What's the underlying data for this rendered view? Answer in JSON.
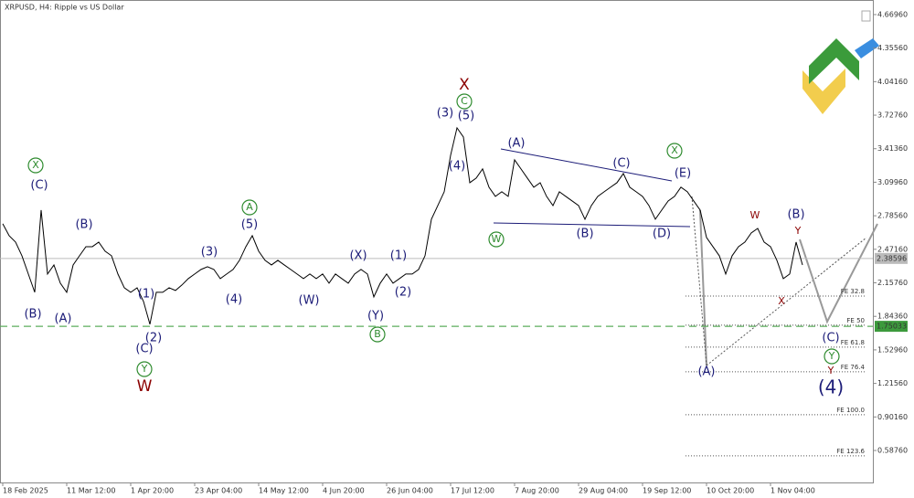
{
  "chart_data": {
    "type": "line",
    "title": "XRPUSD, H4:  Ripple vs US Dollar",
    "categories": [
      "18 Feb 2025",
      null,
      null,
      null,
      null,
      null,
      null,
      null,
      null,
      null,
      "11 Mar 12:00",
      null,
      null,
      null,
      null,
      null,
      null,
      null,
      null,
      null,
      "1 Apr 20:00",
      null,
      null,
      null,
      null,
      null,
      null,
      null,
      null,
      null,
      "23 Apr 04:00",
      null,
      null,
      null,
      null,
      null,
      null,
      null,
      null,
      null,
      "14 May 12:00",
      null,
      null,
      null,
      null,
      null,
      null,
      null,
      null,
      null,
      "4 Jun 20:00",
      null,
      null,
      null,
      null,
      null,
      null,
      null,
      null,
      null,
      "26 Jun 04:00",
      null,
      null,
      null,
      null,
      null,
      null,
      null,
      null,
      null,
      "17 Jul 12:00",
      null,
      null,
      null,
      null,
      null,
      null,
      null,
      null,
      null,
      "7 Aug 20:00",
      null,
      null,
      null,
      null,
      null,
      null,
      null,
      null,
      null,
      "29 Aug 04:00",
      null,
      null,
      null,
      null,
      null,
      null,
      null,
      null,
      null,
      "19 Sep 12:00",
      null,
      null,
      null,
      null,
      null,
      null,
      null,
      null,
      null,
      "10 Oct 20:00",
      null,
      null,
      null,
      null,
      null,
      null,
      null,
      null,
      null,
      "1 Nov 04:00",
      null,
      null,
      null,
      null,
      null
    ],
    "values": [
      2.711,
      2.599,
      2.539,
      2.411,
      2.24,
      2.069,
      2.839,
      2.24,
      2.325,
      2.154,
      2.069,
      2.325,
      2.411,
      2.496,
      2.496,
      2.539,
      2.454,
      2.411,
      2.24,
      2.111,
      2.069,
      2.111,
      1.983,
      1.769,
      2.069,
      2.069,
      2.111,
      2.086,
      2.137,
      2.197,
      2.24,
      2.283,
      2.308,
      2.283,
      2.197,
      2.24,
      2.283,
      2.368,
      2.496,
      2.599,
      2.454,
      2.368,
      2.325,
      2.368,
      2.325,
      2.283,
      2.24,
      2.197,
      2.24,
      2.197,
      2.24,
      2.154,
      2.24,
      2.197,
      2.154,
      2.24,
      2.283,
      2.24,
      2.026,
      2.154,
      2.24,
      2.154,
      2.197,
      2.24,
      2.24,
      2.283,
      2.411,
      2.753,
      2.881,
      3.01,
      3.352,
      3.609,
      3.523,
      3.095,
      3.138,
      3.224,
      3.053,
      2.967,
      3.01,
      2.967,
      3.309,
      3.224,
      3.138,
      3.053,
      3.095,
      2.967,
      2.881,
      3.01,
      2.967,
      2.924,
      2.881,
      2.753,
      2.881,
      2.967,
      3.01,
      3.053,
      3.095,
      3.181,
      3.053,
      3.01,
      2.967,
      2.881,
      2.753,
      2.839,
      2.924,
      2.967,
      3.053,
      3.01,
      2.924,
      2.839,
      2.582,
      2.496,
      2.411,
      2.24,
      2.411,
      2.496,
      2.539,
      2.625,
      2.667,
      2.539,
      2.496,
      2.368,
      2.197,
      2.24,
      2.539,
      2.325
    ],
    "color": "#000000",
    "ylim": [
      0.288,
      4.789
    ],
    "yticks": [
      {
        "value": 4.6696,
        "label": "4.66960"
      },
      {
        "value": 4.3556,
        "label": "4.35560"
      },
      {
        "value": 4.0416,
        "label": "4.04160"
      },
      {
        "value": 3.7276,
        "label": "3.72760"
      },
      {
        "value": 3.4136,
        "label": "3.41360"
      },
      {
        "value": 3.0996,
        "label": "3.09960"
      },
      {
        "value": 2.7856,
        "label": "2.78560"
      },
      {
        "value": 2.4716,
        "label": "2.47160"
      },
      {
        "value": 2.1576,
        "label": "2.15760"
      },
      {
        "value": 1.8436,
        "label": "1.84360"
      },
      {
        "value": 1.5296,
        "label": "1.52960"
      },
      {
        "value": 1.2156,
        "label": "1.21560"
      },
      {
        "value": 0.9016,
        "label": "0.90160"
      },
      {
        "value": 0.5876,
        "label": "0.58760"
      }
    ],
    "price_line": 2.38596,
    "level_line": 1.75033,
    "fib_levels": [
      {
        "label": "FE 32.8",
        "value": 2.034
      },
      {
        "label": "FE 50",
        "value": 1.761
      },
      {
        "label": "FE 61.8",
        "value": 1.555
      },
      {
        "label": "FE 76.4",
        "value": 1.324
      },
      {
        "label": "FE 100.0",
        "value": 0.922
      },
      {
        "label": "FE 123.6",
        "value": 0.537
      }
    ],
    "annotations": [
      {
        "text": "(B)",
        "color": "#1c1c78"
      },
      {
        "text": "(A)",
        "color": "#1c1c78"
      },
      {
        "text": "X",
        "color": "#2e8b2e"
      },
      {
        "text": "(C)",
        "color": "#1c1c78"
      },
      {
        "text": "(B)",
        "color": "#1c1c78"
      },
      {
        "text": "(1)",
        "color": "#1c1c78"
      },
      {
        "text": "(C)",
        "color": "#1c1c78"
      },
      {
        "text": "(2)",
        "color": "#1c1c78"
      },
      {
        "text": "Y",
        "color": "#2e8b2e"
      },
      {
        "text": "W",
        "color": "#8b0000"
      },
      {
        "text": "(3)",
        "color": "#1c1c78"
      },
      {
        "text": "(4)",
        "color": "#1c1c78"
      },
      {
        "text": "A",
        "color": "#2e8b2e"
      },
      {
        "text": "(5)",
        "color": "#1c1c78"
      },
      {
        "text": "(W)",
        "color": "#1c1c78"
      },
      {
        "text": "(X)",
        "color": "#1c1c78"
      },
      {
        "text": "(Y)",
        "color": "#1c1c78"
      },
      {
        "text": "B",
        "color": "#2e8b2e"
      },
      {
        "text": "(1)",
        "color": "#1c1c78"
      },
      {
        "text": "(2)",
        "color": "#1c1c78"
      },
      {
        "text": "(3)",
        "color": "#1c1c78"
      },
      {
        "text": "(4)",
        "color": "#1c1c78"
      },
      {
        "text": "(5)",
        "color": "#1c1c78"
      },
      {
        "text": "C",
        "color": "#2e8b2e"
      },
      {
        "text": "X",
        "color": "#8b0000"
      },
      {
        "text": "(A)",
        "color": "#1c1c78"
      },
      {
        "text": "W",
        "color": "#2e8b2e"
      },
      {
        "text": "(B)",
        "color": "#1c1c78"
      },
      {
        "text": "(C)",
        "color": "#1c1c78"
      },
      {
        "text": "(D)",
        "color": "#1c1c78"
      },
      {
        "text": "X",
        "color": "#2e8b2e"
      },
      {
        "text": "(E)",
        "color": "#1c1c78"
      },
      {
        "text": "W",
        "color": "#8b0000"
      },
      {
        "text": "(B)",
        "color": "#1c1c78"
      },
      {
        "text": "Y",
        "color": "#8b0000"
      },
      {
        "text": "X",
        "color": "#8b0000"
      },
      {
        "text": "(A)",
        "color": "#1c1c78"
      },
      {
        "text": "(C)",
        "color": "#1c1c78"
      },
      {
        "text": "Y",
        "color": "#2e8b2e"
      },
      {
        "text": "Y",
        "color": "#8b0000"
      },
      {
        "text": "(4)",
        "color": "#1c1c78"
      }
    ]
  }
}
